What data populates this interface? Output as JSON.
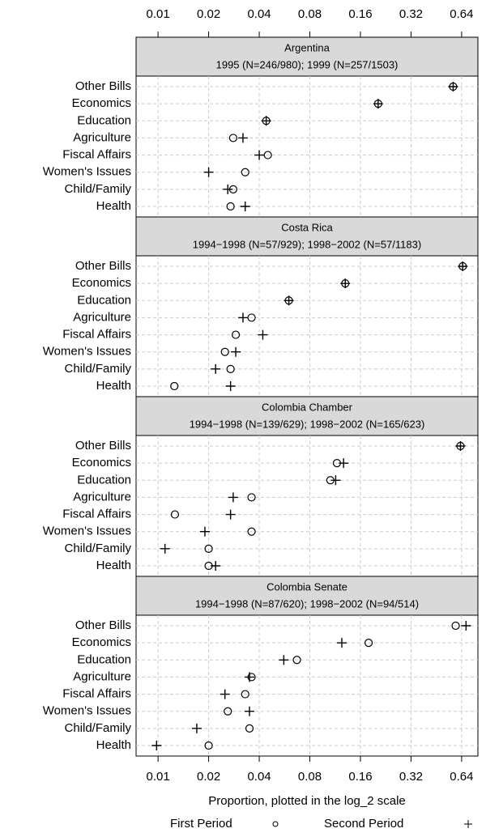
{
  "chart_data": {
    "type": "dot",
    "log_base": 2,
    "xlabel": "Proportion, plotted in the log_2 scale",
    "xlim": [
      0.0074,
      0.8
    ],
    "xticks": [
      0.01,
      0.02,
      0.04,
      0.08,
      0.16,
      0.32,
      0.64
    ],
    "grid": true,
    "categories": [
      "Other Bills",
      "Economics",
      "Education",
      "Agriculture",
      "Fiscal Affairs",
      "Women's Issues",
      "Child/Family",
      "Health"
    ],
    "series": [
      {
        "name": "First Period",
        "marker": "circle",
        "color": "#000000"
      },
      {
        "name": "Second Period",
        "marker": "plus",
        "color": "#000000"
      }
    ],
    "panels": [
      {
        "title": "Argentina",
        "subtitle": "1995 (N=246/980); 1999 (N=257/1503)",
        "values": [
          [
            0.57,
            0.204,
            0.044,
            0.028,
            0.045,
            0.033,
            0.028,
            0.027
          ],
          [
            0.57,
            0.204,
            0.044,
            0.032,
            0.04,
            0.02,
            0.026,
            0.033
          ]
        ]
      },
      {
        "title": "Costa Rica",
        "subtitle": "1994−1998 (N=57/929); 1998−2002 (N=57/1183)",
        "values": [
          [
            0.65,
            0.13,
            0.06,
            0.036,
            0.029,
            0.025,
            0.027,
            0.0125
          ],
          [
            0.65,
            0.13,
            0.06,
            0.032,
            0.042,
            0.029,
            0.022,
            0.027
          ]
        ]
      },
      {
        "title": "Colombia Chamber",
        "subtitle": "1994−1998 (N=139/629); 1998−2002 (N=165/623)",
        "values": [
          [
            0.63,
            0.116,
            0.106,
            0.036,
            0.0126,
            0.036,
            0.02,
            0.02
          ],
          [
            0.63,
            0.127,
            0.114,
            0.028,
            0.027,
            0.019,
            0.011,
            0.022
          ]
        ]
      },
      {
        "title": "Colombia Senate",
        "subtitle": "1994−1998 (N=87/620); 1998−2002 (N=94/514)",
        "values": [
          [
            0.59,
            0.179,
            0.067,
            0.036,
            0.033,
            0.026,
            0.035,
            0.02
          ],
          [
            0.68,
            0.124,
            0.056,
            0.035,
            0.025,
            0.035,
            0.017,
            0.0098
          ]
        ]
      }
    ]
  }
}
